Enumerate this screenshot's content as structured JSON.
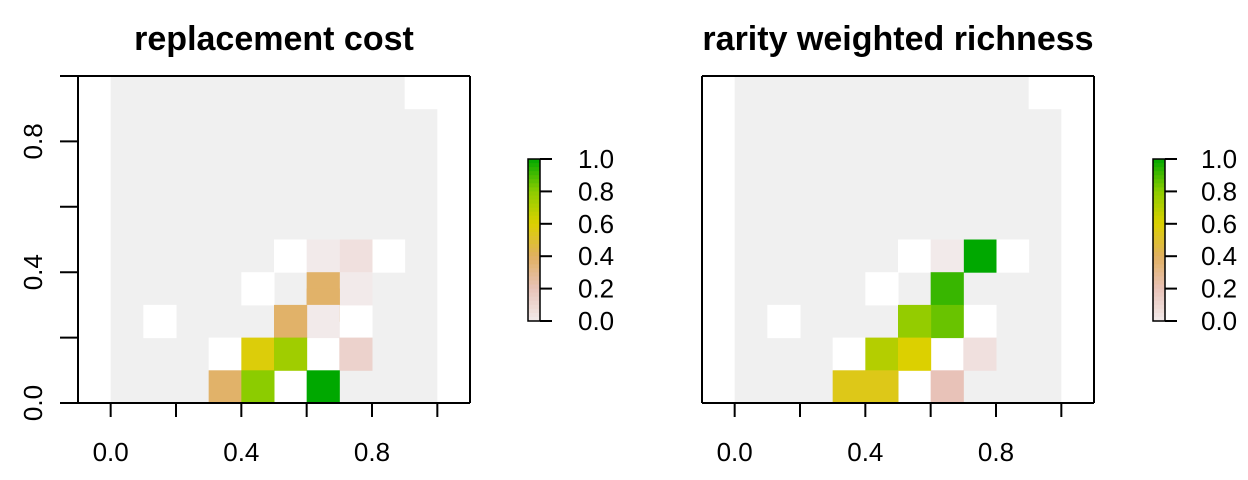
{
  "chart_data": [
    {
      "type": "heatmap",
      "title": "replacement cost",
      "xlabel": "",
      "ylabel": "",
      "xlim": [
        -0.1,
        1.1
      ],
      "ylim": [
        0.0,
        1.0
      ],
      "x_ticks": [
        0.0,
        0.2,
        0.4,
        0.6,
        0.8,
        1.0
      ],
      "x_tick_labels": [
        "0.0",
        "",
        "0.4",
        "",
        "0.8",
        ""
      ],
      "y_ticks": [
        0.0,
        0.2,
        0.4,
        0.6,
        0.8,
        1.0
      ],
      "y_tick_labels": [
        "0.0",
        "",
        "0.4",
        "",
        "0.8",
        ""
      ],
      "grid": false,
      "legend": {
        "position": "right",
        "ticks": [
          0.0,
          0.2,
          0.4,
          0.6,
          0.8,
          1.0
        ],
        "tick_labels": [
          "0.0",
          "0.2",
          "0.4",
          "0.6",
          "0.8",
          "1.0"
        ],
        "colors": [
          "#f2eaea",
          "#e8c2b8",
          "#e0b060",
          "#dcd000",
          "#8ccc00",
          "#00a800"
        ]
      },
      "raster": {
        "x_range": [
          0.0,
          1.0
        ],
        "y_range": [
          0.0,
          1.0
        ],
        "ncol": 10,
        "nrow": 10,
        "background_color": "#f0f0f0",
        "gaps": [
          {
            "col": 9,
            "row": 0
          },
          {
            "col": 5,
            "row": 5
          },
          {
            "col": 8,
            "row": 5
          },
          {
            "col": 4,
            "row": 6
          },
          {
            "col": 1,
            "row": 7
          },
          {
            "col": 6,
            "row": 7
          },
          {
            "col": 7,
            "row": 7
          },
          {
            "col": 6,
            "row": 8
          },
          {
            "col": 3,
            "row": 8
          },
          {
            "col": 5,
            "row": 9
          }
        ],
        "cells": [
          {
            "col": 7,
            "row": 5,
            "value": 0.05
          },
          {
            "col": 6,
            "row": 5,
            "value": 0.0
          },
          {
            "col": 7,
            "row": 6,
            "value": 0.0
          },
          {
            "col": 6,
            "row": 6,
            "value": 0.38
          },
          {
            "col": 6,
            "row": 6.5,
            "value": 0.38
          },
          {
            "col": 6,
            "row": 7,
            "value": 0.0
          },
          {
            "col": 5,
            "row": 7,
            "value": 0.38
          },
          {
            "col": 7,
            "row": 8,
            "value": 0.12
          },
          {
            "col": 4,
            "row": 8,
            "value": 0.58
          },
          {
            "col": 5,
            "row": 8,
            "value": 0.75
          },
          {
            "col": 3,
            "row": 9,
            "value": 0.38
          },
          {
            "col": 4,
            "row": 9,
            "value": 0.8
          },
          {
            "col": 6,
            "row": 9,
            "value": 1.0
          }
        ]
      }
    },
    {
      "type": "heatmap",
      "title": "rarity weighted richness",
      "xlabel": "",
      "ylabel": "",
      "xlim": [
        -0.1,
        1.1
      ],
      "ylim": [
        0.0,
        1.0
      ],
      "x_ticks": [
        0.0,
        0.2,
        0.4,
        0.6,
        0.8,
        1.0
      ],
      "x_tick_labels": [
        "0.0",
        "",
        "0.4",
        "",
        "0.8",
        ""
      ],
      "grid": false,
      "legend": {
        "position": "right",
        "ticks": [
          0.0,
          0.2,
          0.4,
          0.6,
          0.8,
          1.0
        ],
        "tick_labels": [
          "0.0",
          "0.2",
          "0.4",
          "0.6",
          "0.8",
          "1.0"
        ],
        "colors": [
          "#f2eaea",
          "#e8c2b8",
          "#e0b060",
          "#dcd000",
          "#8ccc00",
          "#00a800"
        ]
      },
      "raster": {
        "x_range": [
          0.0,
          1.0
        ],
        "y_range": [
          0.0,
          1.0
        ],
        "ncol": 10,
        "nrow": 10,
        "background_color": "#f0f0f0",
        "gaps": [
          {
            "col": 9,
            "row": 0
          },
          {
            "col": 5,
            "row": 5
          },
          {
            "col": 8,
            "row": 5
          },
          {
            "col": 4,
            "row": 6
          },
          {
            "col": 1,
            "row": 7
          },
          {
            "col": 6,
            "row": 7
          },
          {
            "col": 7,
            "row": 7
          },
          {
            "col": 6,
            "row": 8
          },
          {
            "col": 3,
            "row": 8
          },
          {
            "col": 5,
            "row": 9
          }
        ],
        "cells": [
          {
            "col": 7,
            "row": 5,
            "value": 1.0
          },
          {
            "col": 6,
            "row": 5,
            "value": 0.0
          },
          {
            "col": 6,
            "row": 6,
            "value": 0.92
          },
          {
            "col": 6,
            "row": 7,
            "value": 0.85
          },
          {
            "col": 5,
            "row": 7,
            "value": 0.78
          },
          {
            "col": 7,
            "row": 8,
            "value": 0.05
          },
          {
            "col": 4,
            "row": 8,
            "value": 0.7
          },
          {
            "col": 5,
            "row": 8,
            "value": 0.6
          },
          {
            "col": 3,
            "row": 9,
            "value": 0.55
          },
          {
            "col": 4,
            "row": 9,
            "value": 0.55
          },
          {
            "col": 6,
            "row": 9,
            "value": 0.2
          }
        ]
      }
    }
  ]
}
